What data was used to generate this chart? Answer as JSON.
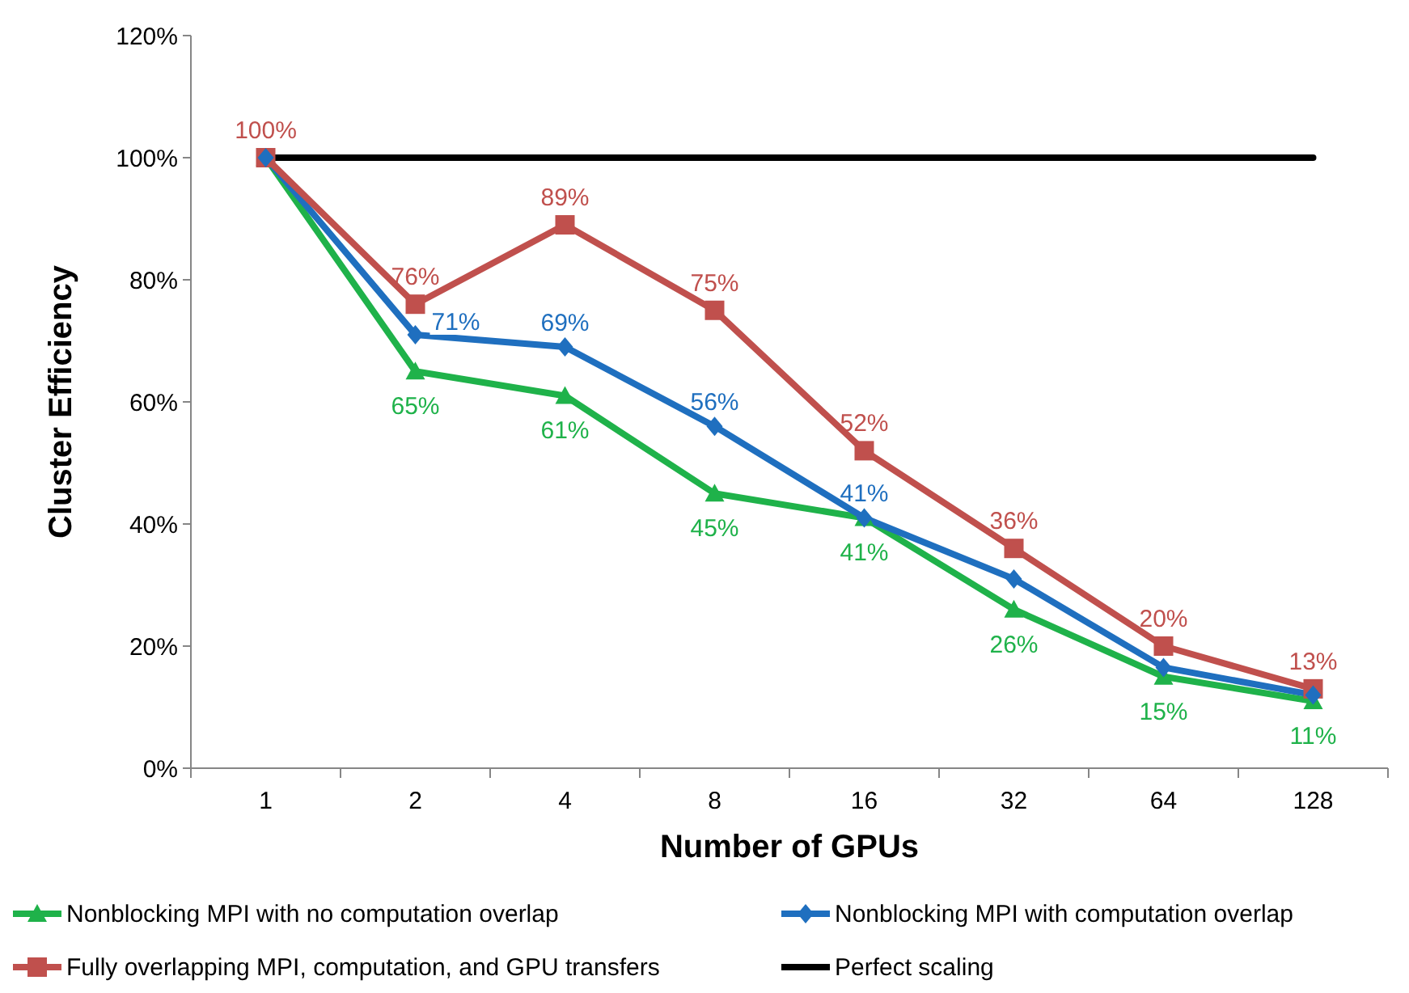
{
  "chart_data": {
    "type": "line",
    "xlabel": "Number of GPUs",
    "ylabel": "Cluster Efficiency",
    "categories": [
      "1",
      "2",
      "4",
      "8",
      "16",
      "32",
      "64",
      "128"
    ],
    "ylim": [
      0,
      120
    ],
    "yticks": [
      {
        "value": 0,
        "label": "0%"
      },
      {
        "value": 20,
        "label": "20%"
      },
      {
        "value": 40,
        "label": "40%"
      },
      {
        "value": 60,
        "label": "60%"
      },
      {
        "value": 80,
        "label": "80%"
      },
      {
        "value": 100,
        "label": "100%"
      },
      {
        "value": 120,
        "label": "120%"
      }
    ],
    "grid": false,
    "legend": "bottom",
    "series": [
      {
        "name": "Nonblocking MPI with no computation overlap",
        "color": "#1fb24a",
        "marker": "triangle",
        "values": [
          100,
          65,
          61,
          45,
          41,
          26,
          15,
          11
        ],
        "value_labels": [
          null,
          "65%",
          "61%",
          "45%",
          "41%",
          "26%",
          "15%",
          "11%"
        ]
      },
      {
        "name": "Nonblocking MPI with computation overlap",
        "color": "#1f6fbf",
        "marker": "diamond",
        "values": [
          100,
          71,
          69,
          56,
          41,
          31,
          16.5,
          12
        ],
        "value_labels": [
          null,
          "71%",
          "69%",
          "56%",
          "41%",
          null,
          null,
          null
        ]
      },
      {
        "name": "Fully overlapping MPI, computation, and GPU transfers",
        "color": "#c0504d",
        "marker": "square",
        "values": [
          100,
          76,
          89,
          75,
          52,
          36,
          20,
          13
        ],
        "value_labels": [
          "100%",
          "76%",
          "89%",
          "75%",
          "52%",
          "36%",
          "20%",
          "13%"
        ]
      },
      {
        "name": "Perfect scaling",
        "color": "#000000",
        "marker": "none",
        "values": [
          100,
          100,
          100,
          100,
          100,
          100,
          100,
          100
        ]
      }
    ]
  }
}
